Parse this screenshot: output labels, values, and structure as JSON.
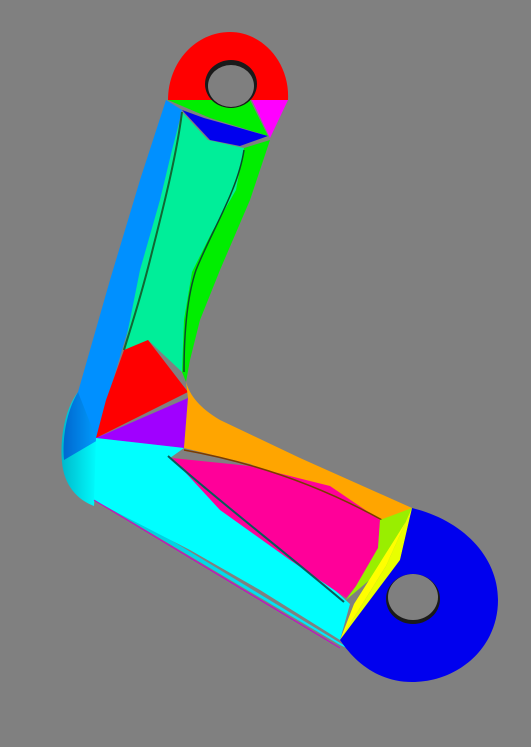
{
  "scene": {
    "description_free": true,
    "background_color": "#808080",
    "part": {
      "faces": [
        {
          "name": "top-hub-face",
          "color": "#ff0000"
        },
        {
          "name": "top-hub-right-face",
          "color": "#ff00ff"
        },
        {
          "name": "top-hub-green-triangle",
          "color": "#00ff00"
        },
        {
          "name": "top-blue-wedge",
          "color": "#0000ee"
        },
        {
          "name": "left-arm-outer-face",
          "color": "#0090ff"
        },
        {
          "name": "left-arm-pocket-floor",
          "color": "#00ee99"
        },
        {
          "name": "left-arm-inner-face",
          "color": "#00ee00"
        },
        {
          "name": "elbow-red-face",
          "color": "#ff0000"
        },
        {
          "name": "elbow-purple-face",
          "color": "#a000ff"
        },
        {
          "name": "elbow-rounded-side",
          "color": "#0078e8"
        },
        {
          "name": "bottom-arm-cyan-face",
          "color": "#00ffff"
        },
        {
          "name": "bottom-arm-orange-face",
          "color": "#ffa500"
        },
        {
          "name": "bottom-arm-pocket-floor",
          "color": "#ff0099"
        },
        {
          "name": "bottom-arm-yellow-face",
          "color": "#ffff00"
        },
        {
          "name": "bottom-hub-face",
          "color": "#0000ee"
        }
      ],
      "hole_color": "#7f7f7f",
      "hole_shadow_color": "#1a1a1a"
    }
  }
}
